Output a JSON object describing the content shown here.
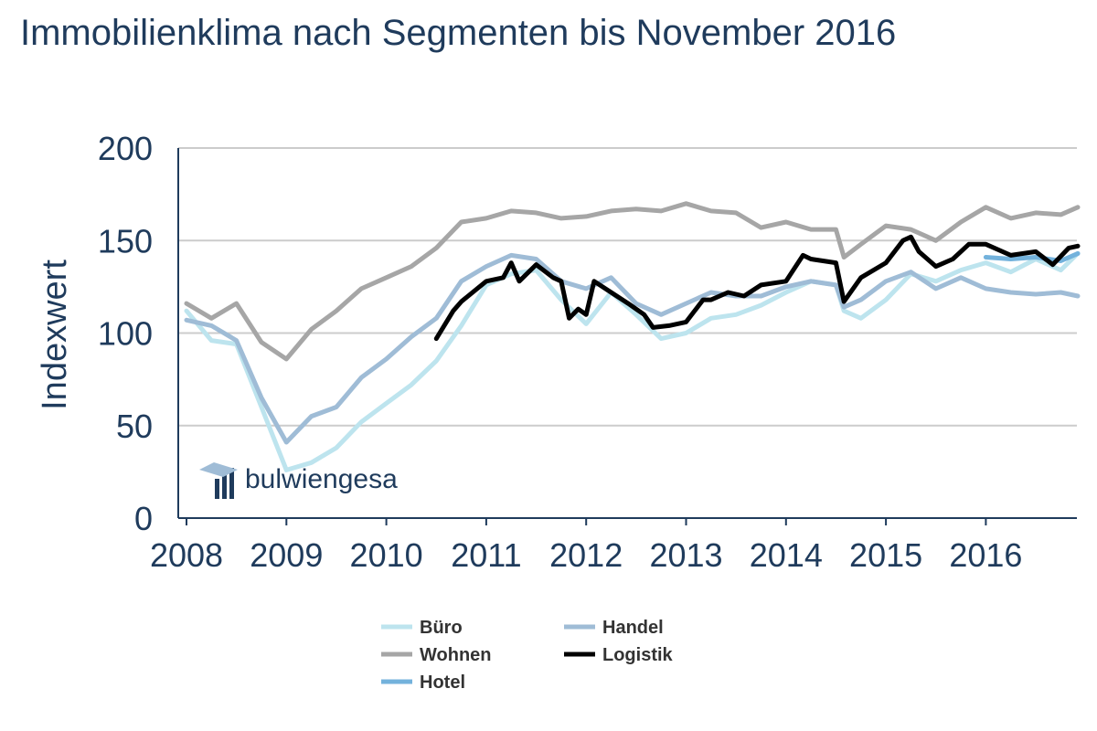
{
  "title": "Immobilienklima nach Segmenten bis November 2016",
  "logo": {
    "text": "bulwiengesa"
  },
  "colors": {
    "Büro": "#bde4ee",
    "Wohnen": "#a6a6a6",
    "Hotel": "#73b2dc",
    "Handel": "#9fbcd6",
    "Logistik": "#000000",
    "axis": "#1f3b5c",
    "grid": "#cccccc"
  },
  "chart_data": {
    "type": "line",
    "title": "",
    "xlabel": "",
    "ylabel": "Indexwert",
    "ylim": [
      0,
      200
    ],
    "yticks": [
      "0",
      "50",
      "100",
      "150",
      "200"
    ],
    "xticks": [
      "2008",
      "2009",
      "2010",
      "2011",
      "2012",
      "2013",
      "2014",
      "2015",
      "2016"
    ],
    "xlim": [
      2008,
      2017
    ],
    "grid": "horizontal",
    "legend_position": "bottom",
    "series": [
      {
        "name": "Büro",
        "points": [
          [
            2008.0,
            112
          ],
          [
            2008.25,
            96
          ],
          [
            2008.5,
            94
          ],
          [
            2008.75,
            60
          ],
          [
            2009.0,
            26
          ],
          [
            2009.25,
            30
          ],
          [
            2009.5,
            38
          ],
          [
            2009.75,
            52
          ],
          [
            2010.0,
            62
          ],
          [
            2010.25,
            72
          ],
          [
            2010.5,
            85
          ],
          [
            2010.75,
            104
          ],
          [
            2011.0,
            126
          ],
          [
            2011.25,
            132
          ],
          [
            2011.5,
            134
          ],
          [
            2011.75,
            118
          ],
          [
            2012.0,
            105
          ],
          [
            2012.25,
            122
          ],
          [
            2012.5,
            110
          ],
          [
            2012.75,
            97
          ],
          [
            2013.0,
            100
          ],
          [
            2013.25,
            108
          ],
          [
            2013.5,
            110
          ],
          [
            2013.75,
            115
          ],
          [
            2014.0,
            122
          ],
          [
            2014.25,
            128
          ],
          [
            2014.5,
            126
          ],
          [
            2014.58,
            112
          ],
          [
            2014.75,
            108
          ],
          [
            2015.0,
            118
          ],
          [
            2015.25,
            132
          ],
          [
            2015.5,
            128
          ],
          [
            2015.75,
            134
          ],
          [
            2016.0,
            138
          ],
          [
            2016.25,
            133
          ],
          [
            2016.5,
            140
          ],
          [
            2016.75,
            134
          ],
          [
            2016.92,
            143
          ]
        ]
      },
      {
        "name": "Wohnen",
        "points": [
          [
            2008.0,
            116
          ],
          [
            2008.25,
            108
          ],
          [
            2008.5,
            116
          ],
          [
            2008.75,
            95
          ],
          [
            2009.0,
            86
          ],
          [
            2009.25,
            102
          ],
          [
            2009.5,
            112
          ],
          [
            2009.75,
            124
          ],
          [
            2010.0,
            130
          ],
          [
            2010.25,
            136
          ],
          [
            2010.5,
            146
          ],
          [
            2010.75,
            160
          ],
          [
            2011.0,
            162
          ],
          [
            2011.25,
            166
          ],
          [
            2011.5,
            165
          ],
          [
            2011.75,
            162
          ],
          [
            2012.0,
            163
          ],
          [
            2012.25,
            166
          ],
          [
            2012.5,
            167
          ],
          [
            2012.75,
            166
          ],
          [
            2013.0,
            170
          ],
          [
            2013.25,
            166
          ],
          [
            2013.5,
            165
          ],
          [
            2013.75,
            157
          ],
          [
            2014.0,
            160
          ],
          [
            2014.25,
            156
          ],
          [
            2014.5,
            156
          ],
          [
            2014.58,
            141
          ],
          [
            2014.75,
            148
          ],
          [
            2015.0,
            158
          ],
          [
            2015.25,
            156
          ],
          [
            2015.5,
            150
          ],
          [
            2015.75,
            160
          ],
          [
            2016.0,
            168
          ],
          [
            2016.25,
            162
          ],
          [
            2016.5,
            165
          ],
          [
            2016.75,
            164
          ],
          [
            2016.92,
            168
          ]
        ]
      },
      {
        "name": "Hotel",
        "points": [
          [
            2016.0,
            141
          ],
          [
            2016.25,
            140
          ],
          [
            2016.5,
            141
          ],
          [
            2016.75,
            139
          ],
          [
            2016.92,
            143
          ]
        ]
      },
      {
        "name": "Handel",
        "points": [
          [
            2008.0,
            107
          ],
          [
            2008.25,
            104
          ],
          [
            2008.5,
            96
          ],
          [
            2008.75,
            65
          ],
          [
            2009.0,
            41
          ],
          [
            2009.25,
            55
          ],
          [
            2009.5,
            60
          ],
          [
            2009.75,
            76
          ],
          [
            2010.0,
            86
          ],
          [
            2010.25,
            98
          ],
          [
            2010.5,
            108
          ],
          [
            2010.75,
            128
          ],
          [
            2011.0,
            136
          ],
          [
            2011.25,
            142
          ],
          [
            2011.5,
            140
          ],
          [
            2011.75,
            128
          ],
          [
            2012.0,
            124
          ],
          [
            2012.25,
            130
          ],
          [
            2012.5,
            116
          ],
          [
            2012.75,
            110
          ],
          [
            2013.0,
            116
          ],
          [
            2013.25,
            122
          ],
          [
            2013.5,
            120
          ],
          [
            2013.75,
            120
          ],
          [
            2014.0,
            125
          ],
          [
            2014.25,
            128
          ],
          [
            2014.5,
            126
          ],
          [
            2014.58,
            114
          ],
          [
            2014.75,
            118
          ],
          [
            2015.0,
            128
          ],
          [
            2015.25,
            133
          ],
          [
            2015.5,
            124
          ],
          [
            2015.75,
            130
          ],
          [
            2016.0,
            124
          ],
          [
            2016.25,
            122
          ],
          [
            2016.5,
            121
          ],
          [
            2016.75,
            122
          ],
          [
            2016.92,
            120
          ]
        ]
      },
      {
        "name": "Logistik",
        "points": [
          [
            2010.5,
            97
          ],
          [
            2010.67,
            112
          ],
          [
            2010.75,
            117
          ],
          [
            2011.0,
            128
          ],
          [
            2011.17,
            130
          ],
          [
            2011.25,
            138
          ],
          [
            2011.33,
            128
          ],
          [
            2011.5,
            137
          ],
          [
            2011.67,
            130
          ],
          [
            2011.75,
            128
          ],
          [
            2011.83,
            108
          ],
          [
            2011.92,
            113
          ],
          [
            2012.0,
            110
          ],
          [
            2012.08,
            128
          ],
          [
            2012.25,
            122
          ],
          [
            2012.42,
            116
          ],
          [
            2012.58,
            110
          ],
          [
            2012.67,
            103
          ],
          [
            2012.83,
            104
          ],
          [
            2013.0,
            106
          ],
          [
            2013.17,
            118
          ],
          [
            2013.25,
            118
          ],
          [
            2013.42,
            122
          ],
          [
            2013.58,
            120
          ],
          [
            2013.75,
            126
          ],
          [
            2014.0,
            128
          ],
          [
            2014.17,
            142
          ],
          [
            2014.25,
            140
          ],
          [
            2014.5,
            138
          ],
          [
            2014.58,
            117
          ],
          [
            2014.75,
            130
          ],
          [
            2015.0,
            138
          ],
          [
            2015.17,
            150
          ],
          [
            2015.25,
            152
          ],
          [
            2015.33,
            144
          ],
          [
            2015.5,
            136
          ],
          [
            2015.67,
            140
          ],
          [
            2015.83,
            148
          ],
          [
            2016.0,
            148
          ],
          [
            2016.25,
            142
          ],
          [
            2016.5,
            144
          ],
          [
            2016.67,
            137
          ],
          [
            2016.83,
            146
          ],
          [
            2016.92,
            147
          ]
        ]
      }
    ]
  }
}
